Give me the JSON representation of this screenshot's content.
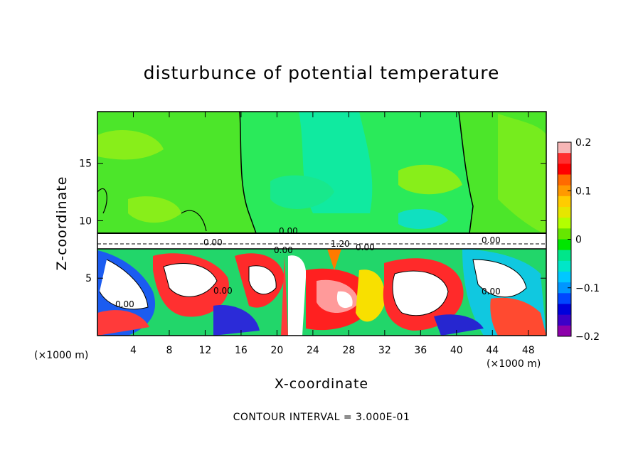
{
  "chart_data": {
    "type": "heatmap",
    "title": "disturbunce of potential temperature",
    "xlabel": "X-coordinate",
    "ylabel": "Z-coordinate",
    "x_unit_label": "(×1000 m)",
    "z_unit_label": "(×1000 m)",
    "x_ticks": [
      4,
      8,
      12,
      16,
      20,
      24,
      28,
      32,
      36,
      40,
      44,
      48
    ],
    "y_ticks": [
      5,
      10,
      15
    ],
    "xlim": [
      0,
      50
    ],
    "ylim": [
      0,
      19.5
    ],
    "colorbar": {
      "ticks": [
        "0.2",
        "0.1",
        "0",
        "-0.1",
        "-0.2"
      ],
      "range": [
        -0.2,
        0.2
      ],
      "colors": [
        "#f6b6b6",
        "#ff3030",
        "#ff0000",
        "#ff6a00",
        "#ff9900",
        "#ffcc00",
        "#e6e600",
        "#b3ff00",
        "#66e600",
        "#00e600",
        "#00e68a",
        "#00e6c8",
        "#00c8ff",
        "#0096ff",
        "#0046ff",
        "#0000dc",
        "#3c00c8",
        "#8c00aa"
      ]
    },
    "contour_labels": [
      "0.00",
      "0.00",
      "1.20",
      "0.00",
      "0.00",
      "0.00",
      "0.00",
      "0.00",
      "0.00"
    ],
    "note": "CONTOUR INTERVAL = 3.000E-01"
  }
}
